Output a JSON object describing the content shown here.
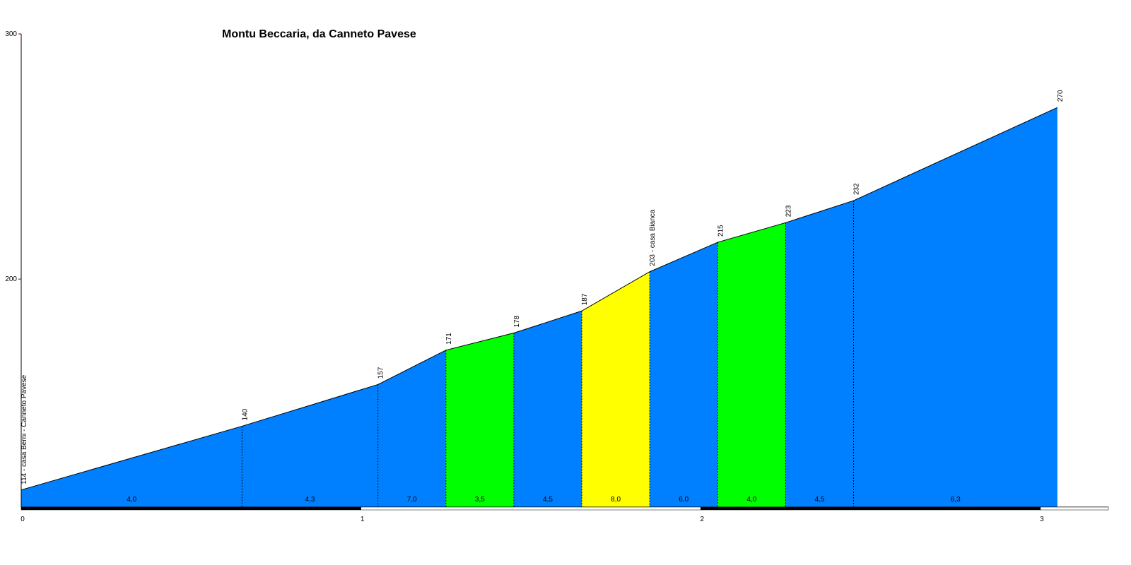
{
  "chart_data": {
    "type": "elevation-profile",
    "title": "Montu Beccaria, da Canneto Pavese",
    "x": [
      0,
      0.65,
      1.05,
      1.25,
      1.45,
      1.65,
      1.85,
      2.05,
      2.25,
      2.45,
      3.05
    ],
    "values": [
      114,
      140,
      157,
      171,
      178,
      187,
      203,
      215,
      223,
      232,
      270
    ],
    "point_labels": [
      "114 - casa Berni - Canneto Pavese",
      "140",
      "157",
      "171",
      "178",
      "187",
      "203 - casa Bianca",
      "215",
      "223",
      "232",
      "270"
    ],
    "grades": [
      4.0,
      4.3,
      7.0,
      3.5,
      4.5,
      8.0,
      6.0,
      4.0,
      4.5,
      6.3
    ],
    "grade_labels": [
      "4,0",
      "4,3",
      "7,0",
      "3,5",
      "4,5",
      "8,0",
      "6,0",
      "4,0",
      "4,5",
      "6,3"
    ],
    "segment_colors": [
      "#0080ff",
      "#0080ff",
      "#0080ff",
      "#00ff00",
      "#0080ff",
      "#ffff00",
      "#0080ff",
      "#00ff00",
      "#0080ff",
      "#0080ff"
    ],
    "xlim": [
      0,
      3.2
    ],
    "xticks": [
      0,
      1,
      2,
      3
    ],
    "ylim": [
      107,
      300
    ],
    "yticks": [
      200,
      300
    ]
  }
}
